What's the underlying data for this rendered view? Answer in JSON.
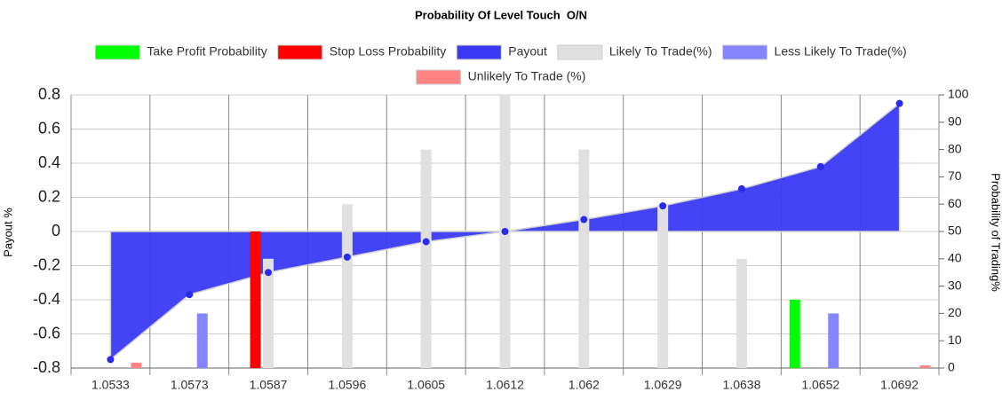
{
  "chart_data": {
    "type": "combo",
    "title": "Probability Of Level Touch  O/N",
    "y_label": "Payout %",
    "y2_label": "Probability of Trading%",
    "categories": [
      "1.0533",
      "1.0573",
      "1.0587",
      "1.0596",
      "1.0605",
      "1.0612",
      "1.062",
      "1.0629",
      "1.0638",
      "1.0652",
      "1.0692"
    ],
    "ylim": [
      -0.8,
      0.8
    ],
    "yticks": [
      -0.8,
      -0.6,
      -0.4,
      -0.2,
      0,
      0.2,
      0.4,
      0.6,
      0.8
    ],
    "y2lim": [
      0,
      100
    ],
    "y2ticks": [
      0,
      10,
      20,
      30,
      40,
      50,
      60,
      70,
      80,
      90,
      100
    ],
    "grid": true,
    "legend": "top",
    "series": [
      {
        "name": "Take Profit Probability",
        "type": "bar",
        "axis": "y2",
        "color": "#00ff00",
        "values": [
          null,
          null,
          null,
          null,
          null,
          null,
          null,
          null,
          null,
          25,
          null
        ]
      },
      {
        "name": "Stop Loss Probability",
        "type": "bar",
        "axis": "y2",
        "color": "#ff0000",
        "values": [
          null,
          null,
          50,
          null,
          null,
          null,
          null,
          null,
          null,
          null,
          null
        ]
      },
      {
        "name": "Payout",
        "type": "area",
        "axis": "y",
        "color": "#3a3af5",
        "values": [
          -0.75,
          -0.37,
          -0.24,
          -0.15,
          -0.06,
          0,
          0.07,
          0.15,
          0.25,
          0.38,
          0.75
        ]
      },
      {
        "name": "Likely To Trade(%)",
        "type": "bar",
        "axis": "y2",
        "color": "#e0e0e0",
        "values": [
          null,
          null,
          40,
          60,
          80,
          100,
          80,
          60,
          40,
          null,
          null
        ]
      },
      {
        "name": "Less Likely To Trade(%)",
        "type": "bar",
        "axis": "y2",
        "color": "#8585ff",
        "values": [
          null,
          20,
          null,
          null,
          null,
          null,
          null,
          null,
          null,
          20,
          null
        ]
      },
      {
        "name": "Unlikely To Trade (%)",
        "type": "bar",
        "axis": "y2",
        "color": "#ff8585",
        "values": [
          2,
          null,
          null,
          null,
          null,
          null,
          null,
          null,
          null,
          null,
          1
        ]
      }
    ]
  }
}
